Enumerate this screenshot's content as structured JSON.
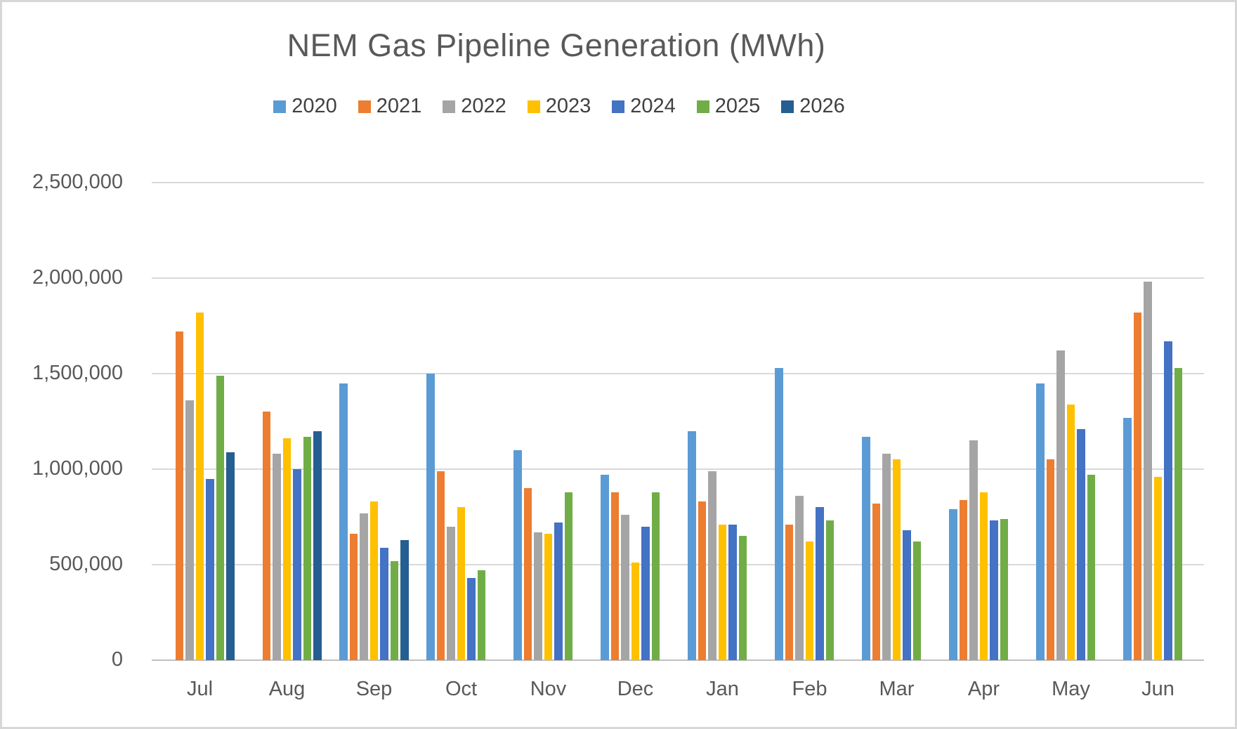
{
  "chart": {
    "title": "NEM Gas Pipeline Generation (MWh)"
  },
  "chart_data": {
    "type": "bar",
    "title": "NEM Gas Pipeline Generation (MWh)",
    "xlabel": "",
    "ylabel": "",
    "unit": "MWh",
    "grid": "horizontal",
    "legend_position": "top",
    "ylim": [
      0,
      2500000
    ],
    "ytick_step": 500000,
    "ytick_values": [
      0,
      500000,
      1000000,
      1500000,
      2000000,
      2500000
    ],
    "ytick_labels": [
      "0",
      "500,000",
      "1,000,000",
      "1,500,000",
      "2,000,000",
      "2,500,000"
    ],
    "categories": [
      "Jul",
      "Aug",
      "Sep",
      "Oct",
      "Nov",
      "Dec",
      "Jan",
      "Feb",
      "Mar",
      "Apr",
      "May",
      "Jun"
    ],
    "series": [
      {
        "name": "2020",
        "color": "#5B9BD5",
        "values": [
          null,
          null,
          1450000,
          1500000,
          1100000,
          970000,
          1200000,
          1530000,
          1170000,
          790000,
          1450000,
          1270000
        ]
      },
      {
        "name": "2021",
        "color": "#ED7D31",
        "values": [
          1720000,
          1300000,
          660000,
          990000,
          900000,
          880000,
          830000,
          710000,
          820000,
          840000,
          1050000,
          1820000
        ]
      },
      {
        "name": "2022",
        "color": "#A5A5A5",
        "values": [
          1360000,
          1080000,
          770000,
          700000,
          670000,
          760000,
          990000,
          860000,
          1080000,
          1150000,
          1620000,
          1980000
        ]
      },
      {
        "name": "2023",
        "color": "#FFC000",
        "values": [
          1820000,
          1160000,
          830000,
          800000,
          660000,
          510000,
          710000,
          620000,
          1050000,
          880000,
          1340000,
          960000
        ]
      },
      {
        "name": "2024",
        "color": "#4472C4",
        "values": [
          950000,
          1000000,
          590000,
          430000,
          720000,
          700000,
          710000,
          800000,
          680000,
          730000,
          1210000,
          1670000
        ]
      },
      {
        "name": "2025",
        "color": "#70AD47",
        "values": [
          1490000,
          1170000,
          520000,
          470000,
          880000,
          880000,
          650000,
          730000,
          620000,
          740000,
          970000,
          1530000
        ]
      },
      {
        "name": "2026",
        "color": "#255E91",
        "values": [
          1090000,
          1200000,
          630000,
          null,
          null,
          null,
          null,
          null,
          null,
          null,
          null,
          null
        ]
      }
    ]
  }
}
